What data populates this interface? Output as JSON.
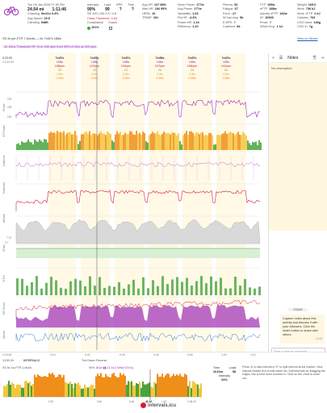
{
  "header": {
    "date_time": "Tue 06 Jan 2026 07:30 PM",
    "distance": "24.54 mi",
    "moving_time": "1:11:46",
    "coasting": "0m21s 0.4%",
    "avg_speed": "20.5",
    "climbing": "948ft",
    "intensity_label": "Intensity",
    "intensity": "90%",
    "load_label": "Load",
    "load": "99",
    "rpe_label": "RPE",
    "rpe": "?",
    "feel_label": "Feel",
    "feel": "?",
    "sub_line": "SS 100 | GD 0.4 / 0.8",
    "class_line": "Class Threshold -0.64",
    "compliance_label": "Compliance",
    "compliance": "101%",
    "coach_label": "Coach",
    "hr": [
      {
        "k": "Avg HR",
        "v": "147 88%"
      },
      {
        "k": "Max HR",
        "v": "166 99%"
      },
      {
        "k": "HRRc",
        "v": "16"
      },
      {
        "k": "TRIMP",
        "v": "191"
      }
    ],
    "power": [
      {
        "k": "Norm Power",
        "v": "177w"
      },
      {
        "k": "Avg Power",
        "v": "177w"
      },
      {
        "k": "Variability",
        "v": "1.03"
      },
      {
        "k": "Pw:HR",
        "v": "-3.3%"
      },
      {
        "k": "Power:HR",
        "v": "1.16"
      },
      {
        "k": "Efficiency",
        "v": "1.20"
      }
    ],
    "fitness": [
      {
        "k": "Fitness",
        "v": "50"
      },
      {
        "k": "Fatigue",
        "v": "67"
      },
      {
        "k": "Form",
        "v": "-17"
      },
      {
        "k": "W' bal drop",
        "v": "5k"
      },
      {
        "k": "E-RPE",
        "v": "?"
      },
      {
        "k": "Cadence",
        "v": "84"
      }
    ],
    "threshold": [
      {
        "k": "FTP",
        "v": "195w"
      },
      {
        "k": "eFTP",
        "v": "188w"
      },
      {
        "k": "Activity eFTP",
        "v": "182w"
      },
      {
        "k": "W'",
        "v": "20500"
      },
      {
        "k": "Pmax",
        "v": "?"
      },
      {
        "k": "W'bal Drop",
        "v": "1 kJ"
      }
    ],
    "weight": [
      {
        "k": "Weight",
        "v": "165.0"
      },
      {
        "k": "Work",
        "v": "736 kJ"
      },
      {
        "k": "Work >FTP",
        "v": "2 kJ"
      },
      {
        "k": "Calories",
        "v": "703"
      },
      {
        "k": "CHO Used",
        "v": "146g"
      },
      {
        "k": "CHO In",
        "v": "?g"
      }
    ],
    "view_strava": "View on Strava",
    "workout_desc": "SS 4x per-FTP-7-blocks — 6x 7m57s 188w",
    "info_bar": "1h 181w  Threshold HR +6 to 156 bpm from 98% of 20m at 155 bpm"
  },
  "laps": [
    {
      "h": "7m57s",
      "p": "188w",
      "r": "158bpm",
      "g": "24",
      "o": "2.5w",
      "x": "2.68w"
    },
    {
      "h": "7m57s",
      "p": "188w",
      "r": "147bpm",
      "g": "24",
      "o": "2.5w",
      "x": "2.68w"
    },
    {
      "h": "7m57s",
      "p": "188w",
      "r": "154bpm",
      "g": "24",
      "o": "2.5w",
      "x": "2.68w"
    },
    {
      "h": "7m58s",
      "p": "188w",
      "r": "157bpm",
      "g": "24",
      "o": "2.5w",
      "x": "2.68w"
    },
    {
      "h": "7m57s",
      "p": "188w",
      "r": "156bpm",
      "g": "24",
      "o": "2.5w",
      "x": "2.68w"
    },
    {
      "h": "7m57s",
      "p": "188w",
      "r": "161bpm",
      "g": "24",
      "o": "2.5w",
      "x": "2.68w"
    }
  ],
  "chart": {
    "cursor_time": "0:23:05",
    "cursor_clock": "13:53:26",
    "rows": [
      {
        "label": "Power"
      },
      {
        "label": "SS Power"
      },
      {
        "label": "Cadence"
      },
      {
        "label": "Heartrate"
      },
      {
        "label": "Altitude"
      },
      {
        "label": "W'bal"
      },
      {
        "label": "% Pw"
      },
      {
        "label": "HR Zones"
      },
      {
        "label": "Speed"
      }
    ],
    "ticks": {
      "power_top": "223",
      "power_mid": "183",
      "power_low": "181",
      "alt": "7.70",
      "alt2": "2.7"
    }
  },
  "time_axis": [
    "0:23:05",
    "0:10",
    "0:20",
    "0:30",
    "0:40",
    "0:50",
    "1:00",
    "1:10"
  ],
  "time_axis_clock": "13:53:26",
  "intervals": {
    "label": "INTERVALS",
    "route": "The Essex Reverse",
    "workout_label": "SS 5x 1w-FTP-1-block",
    "summary": "96% 181w ▮▮ 11.1s.2 Wbal 19.6 kj",
    "timeline_labels": [
      "0:20",
      "0:40",
      "0:48",
      "1:00",
      "1:08:40"
    ],
    "cursor_label": "41:22"
  },
  "lap_box": {
    "time_label": "Time",
    "time": "1h10m",
    "load_label": "Load",
    "load": "98",
    "intensity_label": "Intensity",
    "intensity": "91%"
  },
  "help_text": "Press 'A' to add interval or 'E' to split interval at the marker. Click interval header text to edit name etc. Edit intervals by dragging the edges, this is best done zoomed in. Click on the chart to zoom out.",
  "notes": {
    "tab_label": "Notes",
    "description": "No description",
    "today": "TODAY",
    "bubble": "Capture notes about this activity and discuss it with your followers. Click the share button to share with others.",
    "bubble_time": "14:45",
    "reply_placeholder": "Type a note or comment"
  },
  "brand": "intervals.icu",
  "colors": {
    "purple": "#9d2eb5",
    "red": "#d21d36",
    "green": "#4aa33f",
    "orange": "#f08e1a",
    "yellow": "#f6c63b",
    "blue": "#2c7ad6"
  }
}
